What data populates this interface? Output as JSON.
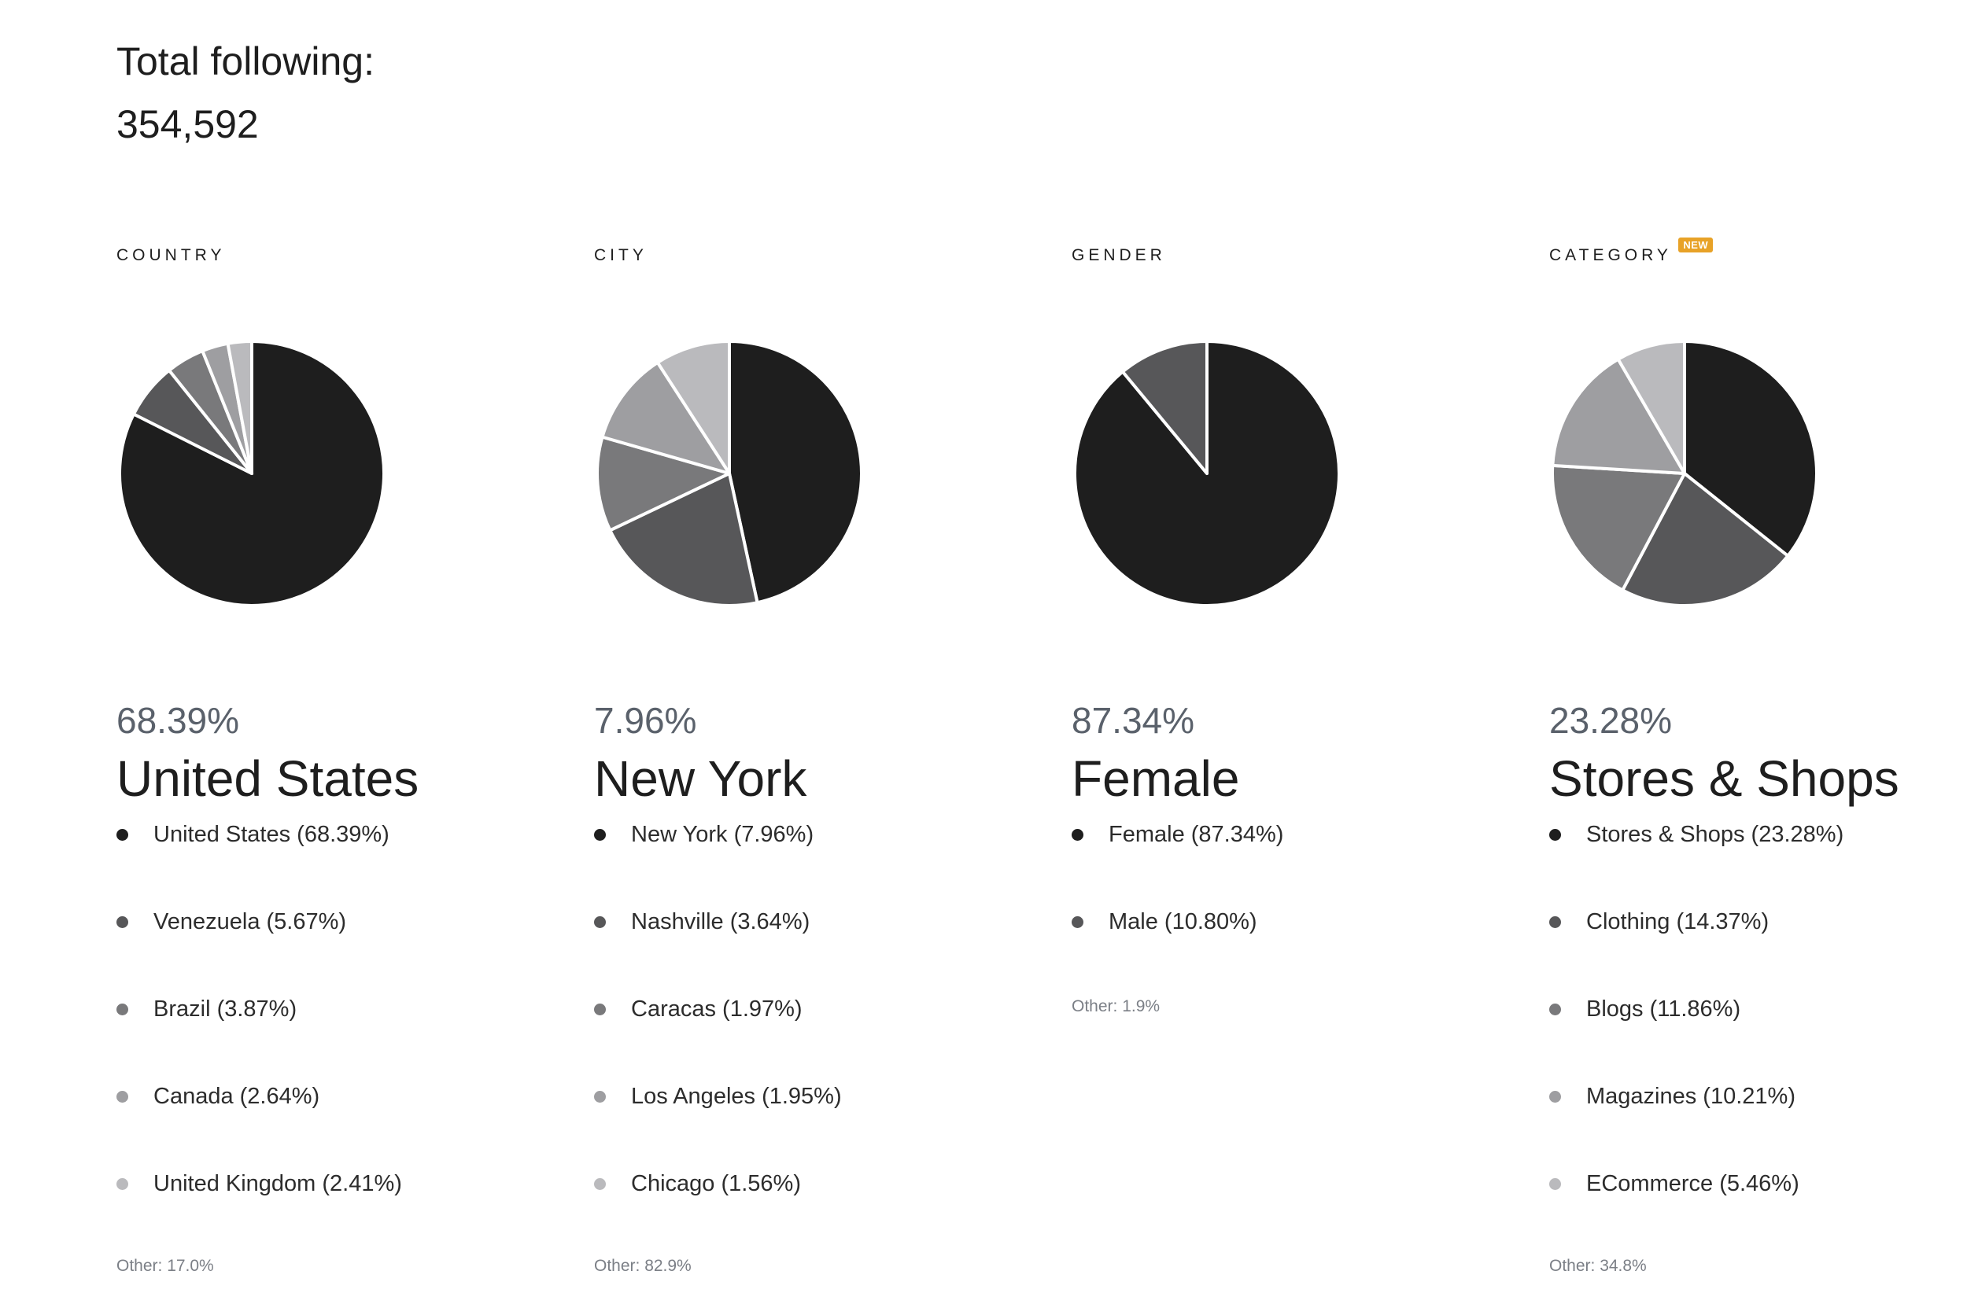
{
  "header": {
    "total_label": "Total following:",
    "total_value": "354,592"
  },
  "palette": [
    "#1e1e1e",
    "#575759",
    "#79797b",
    "#9e9ea1",
    "#bababd"
  ],
  "panels": [
    {
      "title": "COUNTRY",
      "badge": "",
      "top_percent": "68.39%",
      "top_name": "United States",
      "legend": [
        {
          "label": "United States (68.39%)"
        },
        {
          "label": "Venezuela (5.67%)"
        },
        {
          "label": "Brazil (3.87%)"
        },
        {
          "label": "Canada (2.64%)"
        },
        {
          "label": "United Kingdom (2.41%)"
        }
      ],
      "other": "Other: 17.0%"
    },
    {
      "title": "CITY",
      "badge": "",
      "top_percent": "7.96%",
      "top_name": "New York",
      "legend": [
        {
          "label": "New York (7.96%)"
        },
        {
          "label": "Nashville (3.64%)"
        },
        {
          "label": "Caracas (1.97%)"
        },
        {
          "label": "Los Angeles (1.95%)"
        },
        {
          "label": "Chicago (1.56%)"
        }
      ],
      "other": "Other: 82.9%"
    },
    {
      "title": "GENDER",
      "badge": "",
      "top_percent": "87.34%",
      "top_name": "Female",
      "legend": [
        {
          "label": "Female (87.34%)"
        },
        {
          "label": "Male (10.80%)"
        }
      ],
      "other": "Other: 1.9%"
    },
    {
      "title": "CATEGORY",
      "badge": "NEW",
      "top_percent": "23.28%",
      "top_name": "Stores & Shops",
      "legend": [
        {
          "label": "Stores & Shops (23.28%)"
        },
        {
          "label": "Clothing (14.37%)"
        },
        {
          "label": "Blogs (11.86%)"
        },
        {
          "label": "Magazines (10.21%)"
        },
        {
          "label": "ECommerce (5.46%)"
        }
      ],
      "other": "Other: 34.8%"
    }
  ],
  "chart_data": [
    {
      "type": "pie",
      "title": "COUNTRY",
      "categories": [
        "United States",
        "Venezuela",
        "Brazil",
        "Canada",
        "United Kingdom"
      ],
      "values": [
        68.39,
        5.67,
        3.87,
        2.64,
        2.41
      ]
    },
    {
      "type": "pie",
      "title": "CITY",
      "categories": [
        "New York",
        "Nashville",
        "Caracas",
        "Los Angeles",
        "Chicago"
      ],
      "values": [
        7.96,
        3.64,
        1.97,
        1.95,
        1.56
      ]
    },
    {
      "type": "pie",
      "title": "GENDER",
      "categories": [
        "Female",
        "Male"
      ],
      "values": [
        87.34,
        10.8
      ]
    },
    {
      "type": "pie",
      "title": "CATEGORY",
      "categories": [
        "Stores & Shops",
        "Clothing",
        "Blogs",
        "Magazines",
        "ECommerce"
      ],
      "values": [
        23.28,
        14.37,
        11.86,
        10.21,
        5.46
      ]
    }
  ]
}
